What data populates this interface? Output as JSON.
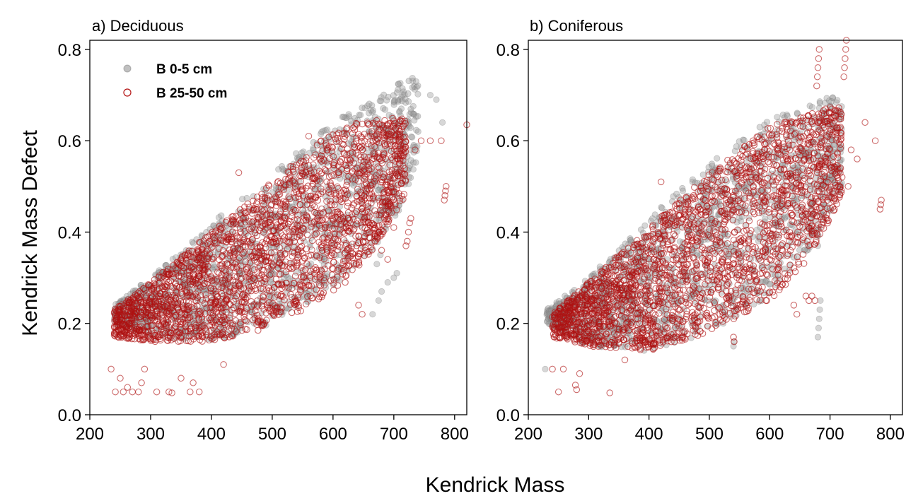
{
  "shared_labels": {
    "ylabel": "Kendrick Mass Defect",
    "xlabel": "Kendrick Mass"
  },
  "legend": [
    {
      "label": "B 0-5 cm",
      "marker": "filled-circle",
      "color": "#9a9a9a"
    },
    {
      "label": "B 25-50 cm",
      "marker": "open-circle",
      "color": "#b41414"
    }
  ],
  "chart_data": [
    {
      "type": "scatter",
      "title": "a) Deciduous",
      "xlim": [
        200,
        820
      ],
      "ylim": [
        0.0,
        0.82
      ],
      "xticks": [
        200,
        300,
        400,
        500,
        600,
        700,
        800
      ],
      "yticks": [
        0.0,
        0.2,
        0.4,
        0.6,
        0.8
      ],
      "ytick_labels": [
        "0.0",
        "0.2",
        "0.4",
        "0.6",
        "0.8"
      ],
      "series": [
        {
          "name": "B 0-5 cm",
          "band": {
            "lower": [
              [
                240,
                0.2
              ],
              [
                300,
                0.17
              ],
              [
                400,
                0.16
              ],
              [
                500,
                0.2
              ],
              [
                600,
                0.28
              ],
              [
                680,
                0.38
              ],
              [
                740,
                0.52
              ]
            ],
            "upper": [
              [
                240,
                0.24
              ],
              [
                300,
                0.3
              ],
              [
                400,
                0.42
              ],
              [
                500,
                0.53
              ],
              [
                600,
                0.64
              ],
              [
                700,
                0.72
              ],
              [
                740,
                0.75
              ]
            ]
          },
          "outliers": [
            [
              675,
              0.25
            ],
            [
              680,
              0.27
            ],
            [
              690,
              0.29
            ],
            [
              700,
              0.3
            ],
            [
              705,
              0.31
            ],
            [
              665,
              0.22
            ],
            [
              672,
              0.33
            ],
            [
              678,
              0.35
            ],
            [
              760,
              0.7
            ],
            [
              770,
              0.69
            ],
            [
              780,
              0.64
            ]
          ]
        },
        {
          "name": "B 25-50 cm",
          "band": {
            "lower": [
              [
                240,
                0.17
              ],
              [
                300,
                0.16
              ],
              [
                400,
                0.16
              ],
              [
                500,
                0.19
              ],
              [
                600,
                0.27
              ],
              [
                660,
                0.35
              ],
              [
                720,
                0.48
              ]
            ],
            "upper": [
              [
                240,
                0.23
              ],
              [
                300,
                0.29
              ],
              [
                400,
                0.4
              ],
              [
                500,
                0.51
              ],
              [
                580,
                0.6
              ],
              [
                640,
                0.64
              ],
              [
                700,
                0.65
              ]
            ]
          },
          "outliers": [
            [
              235,
              0.1
            ],
            [
              242,
              0.05
            ],
            [
              250,
              0.08
            ],
            [
              255,
              0.05
            ],
            [
              262,
              0.06
            ],
            [
              270,
              0.05
            ],
            [
              280,
              0.05
            ],
            [
              285,
              0.07
            ],
            [
              290,
              0.1
            ],
            [
              310,
              0.05
            ],
            [
              330,
              0.05
            ],
            [
              335,
              0.048
            ],
            [
              350,
              0.08
            ],
            [
              365,
              0.05
            ],
            [
              370,
              0.07
            ],
            [
              380,
              0.05
            ],
            [
              420,
              0.11
            ],
            [
              445,
              0.53
            ],
            [
              560,
              0.61
            ],
            [
              620,
              0.29
            ],
            [
              642,
              0.24
            ],
            [
              648,
              0.22
            ],
            [
              660,
              0.4
            ],
            [
              670,
              0.38
            ],
            [
              675,
              0.4
            ],
            [
              680,
              0.36
            ],
            [
              690,
              0.34
            ],
            [
              700,
              0.41
            ],
            [
              720,
              0.37
            ],
            [
              722,
              0.38
            ],
            [
              724,
              0.4
            ],
            [
              726,
              0.42
            ],
            [
              728,
              0.43
            ],
            [
              735,
              0.58
            ],
            [
              745,
              0.6
            ],
            [
              760,
              0.6
            ],
            [
              778,
              0.6
            ],
            [
              783,
              0.47
            ],
            [
              784,
              0.48
            ],
            [
              785,
              0.49
            ],
            [
              786,
              0.5
            ],
            [
              820,
              0.635
            ]
          ]
        }
      ]
    },
    {
      "type": "scatter",
      "title": "b) Coniferous",
      "xlim": [
        200,
        820
      ],
      "ylim": [
        0.0,
        0.82
      ],
      "xticks": [
        200,
        300,
        400,
        500,
        600,
        700,
        800
      ],
      "yticks": [
        0.0,
        0.2,
        0.4,
        0.6,
        0.8
      ],
      "ytick_labels": [
        "0.0",
        "0.2",
        "0.4",
        "0.6",
        "0.8"
      ],
      "series": [
        {
          "name": "B 0-5 cm",
          "band": {
            "lower": [
              [
                230,
                0.2
              ],
              [
                300,
                0.15
              ],
              [
                400,
                0.14
              ],
              [
                500,
                0.18
              ],
              [
                600,
                0.26
              ],
              [
                680,
                0.38
              ],
              [
                720,
                0.5
              ]
            ],
            "upper": [
              [
                230,
                0.23
              ],
              [
                300,
                0.3
              ],
              [
                400,
                0.43
              ],
              [
                500,
                0.55
              ],
              [
                600,
                0.65
              ],
              [
                680,
                0.69
              ],
              [
                720,
                0.7
              ]
            ]
          },
          "outliers": [
            [
              228,
              0.1
            ],
            [
              235,
              0.22
            ],
            [
              540,
              0.15
            ],
            [
              541,
              0.16
            ],
            [
              680,
              0.17
            ],
            [
              681,
              0.19
            ],
            [
              682,
              0.21
            ],
            [
              683,
              0.23
            ],
            [
              684,
              0.25
            ],
            [
              680,
              0.37
            ]
          ]
        },
        {
          "name": "B 25-50 cm",
          "band": {
            "lower": [
              [
                240,
                0.17
              ],
              [
                300,
                0.15
              ],
              [
                400,
                0.14
              ],
              [
                500,
                0.18
              ],
              [
                600,
                0.25
              ],
              [
                660,
                0.33
              ],
              [
                720,
                0.48
              ]
            ],
            "upper": [
              [
                240,
                0.22
              ],
              [
                300,
                0.29
              ],
              [
                400,
                0.41
              ],
              [
                500,
                0.53
              ],
              [
                600,
                0.63
              ],
              [
                660,
                0.66
              ],
              [
                720,
                0.68
              ]
            ]
          },
          "outliers": [
            [
              240,
              0.1
            ],
            [
              250,
              0.05
            ],
            [
              258,
              0.1
            ],
            [
              278,
              0.065
            ],
            [
              280,
              0.055
            ],
            [
              285,
              0.09
            ],
            [
              335,
              0.048
            ],
            [
              360,
              0.12
            ],
            [
              420,
              0.51
            ],
            [
              540,
              0.17
            ],
            [
              541,
              0.16
            ],
            [
              640,
              0.24
            ],
            [
              645,
              0.22
            ],
            [
              660,
              0.26
            ],
            [
              665,
              0.25
            ],
            [
              670,
              0.26
            ],
            [
              675,
              0.25
            ],
            [
              678,
              0.72
            ],
            [
              679,
              0.74
            ],
            [
              680,
              0.76
            ],
            [
              681,
              0.78
            ],
            [
              682,
              0.8
            ],
            [
              680,
              0.62
            ],
            [
              680,
              0.64
            ],
            [
              700,
              0.62
            ],
            [
              720,
              0.52
            ],
            [
              723,
              0.74
            ],
            [
              724,
              0.76
            ],
            [
              725,
              0.78
            ],
            [
              726,
              0.8
            ],
            [
              727,
              0.82
            ],
            [
              730,
              0.5
            ],
            [
              735,
              0.58
            ],
            [
              745,
              0.56
            ],
            [
              758,
              0.64
            ],
            [
              775,
              0.6
            ],
            [
              783,
              0.45
            ],
            [
              784,
              0.46
            ],
            [
              785,
              0.47
            ]
          ]
        }
      ]
    }
  ]
}
